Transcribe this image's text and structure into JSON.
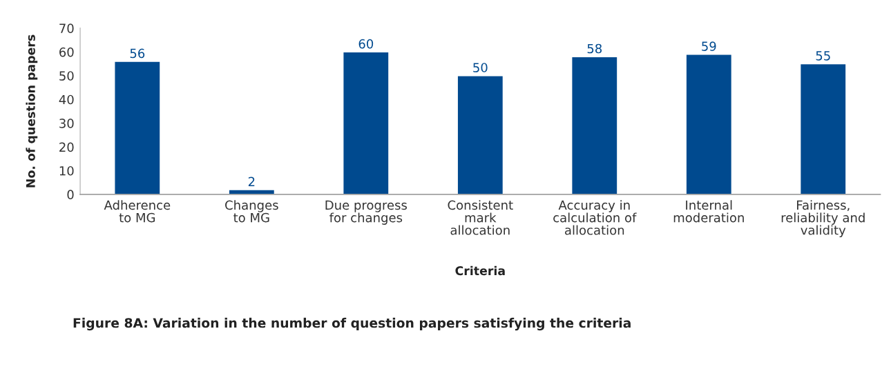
{
  "chart_data": {
    "type": "bar",
    "categories": [
      "Adherence\nto MG",
      "Changes\nto MG",
      "Due progress\nfor changes",
      "Consistent\nmark\nallocation",
      "Accuracy in\ncalculation of\nallocation",
      "Internal\nmoderation",
      "Fairness,\nreliability and\nvalidity"
    ],
    "values": [
      56,
      2,
      60,
      50,
      58,
      59,
      55
    ],
    "color": "#004a8f",
    "ylim": [
      0,
      70
    ],
    "yticks": [
      0,
      10,
      20,
      30,
      40,
      50,
      60,
      70
    ],
    "xlabel": "Criteria",
    "ylabel": "No. of question papers",
    "data_labels": true,
    "annotations": [
      "Figure 8A: Variation in the number of question papers satisfying the criteria"
    ]
  }
}
